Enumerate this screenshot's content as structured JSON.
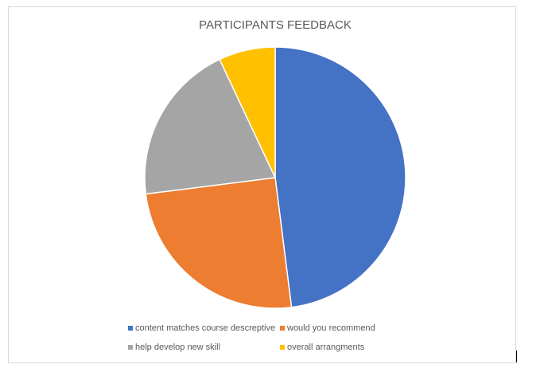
{
  "chart_data": {
    "type": "pie",
    "title": "PARTICIPANTS FEEDBACK",
    "categories": [
      "content matches course descreptive",
      "would you recommend",
      "help develop new skill",
      "overall arrangments"
    ],
    "values": [
      48,
      25,
      20,
      7
    ],
    "colors": [
      "#4472c4",
      "#ed7d31",
      "#a5a5a5",
      "#ffc000"
    ],
    "legend": "bottom"
  }
}
